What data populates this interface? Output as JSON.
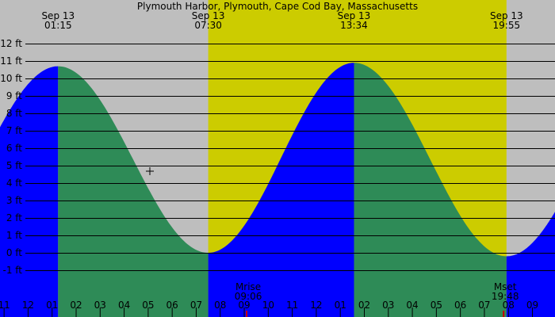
{
  "chart_data": {
    "type": "area",
    "title": "Plymouth Harbor, Plymouth, Cape Cod Bay, Massachusetts",
    "xlabel": "",
    "ylabel": "",
    "x_unit": "hours",
    "xlim": [
      22.83,
      45.94
    ],
    "ylim": [
      -2,
      12.5
    ],
    "y_ticks": [
      -1,
      0,
      1,
      2,
      3,
      4,
      5,
      6,
      7,
      8,
      9,
      10,
      11,
      12
    ],
    "y_tick_labels": [
      "-1 ft",
      "0 ft",
      "1 ft",
      "2 ft",
      "3 ft",
      "4 ft",
      "5 ft",
      "6 ft",
      "7 ft",
      "8 ft",
      "9 ft",
      "10 ft",
      "11 ft",
      "12 ft"
    ],
    "x_ticks": [
      23,
      24,
      25,
      26,
      27,
      28,
      29,
      30,
      31,
      32,
      33,
      34,
      35,
      36,
      37,
      38,
      39,
      40,
      41,
      42,
      43,
      44,
      45
    ],
    "x_tick_labels": [
      "11",
      "12",
      "01",
      "02",
      "03",
      "04",
      "05",
      "06",
      "07",
      "08",
      "09",
      "10",
      "11",
      "12",
      "01",
      "02",
      "03",
      "04",
      "05",
      "06",
      "07",
      "08",
      "09"
    ],
    "daylight": {
      "start": 31.5,
      "end": 43.92
    },
    "tide_events": [
      {
        "t": 25.25,
        "height": 10.7,
        "type": "high",
        "date": "Sep 13",
        "time": "01:15"
      },
      {
        "t": 31.5,
        "height": 0.0,
        "type": "low",
        "date": "Sep 13",
        "time": "07:30"
      },
      {
        "t": 37.57,
        "height": 10.9,
        "type": "high",
        "date": "Sep 13",
        "time": "13:34"
      },
      {
        "t": 43.92,
        "height": -0.2,
        "type": "low",
        "date": "Sep 13",
        "time": "19:55"
      }
    ],
    "moon_events": [
      {
        "t": 33.1,
        "label": "Mrise",
        "time": "09:06"
      },
      {
        "t": 43.8,
        "label": "Mset",
        "time": "19:48"
      }
    ],
    "colors": {
      "night": "#bebebe",
      "day": "#cccc00",
      "rising": "#0000ff",
      "falling": "#2e8b57",
      "grid": "#000000",
      "moon_marker": "#cc0000"
    }
  }
}
